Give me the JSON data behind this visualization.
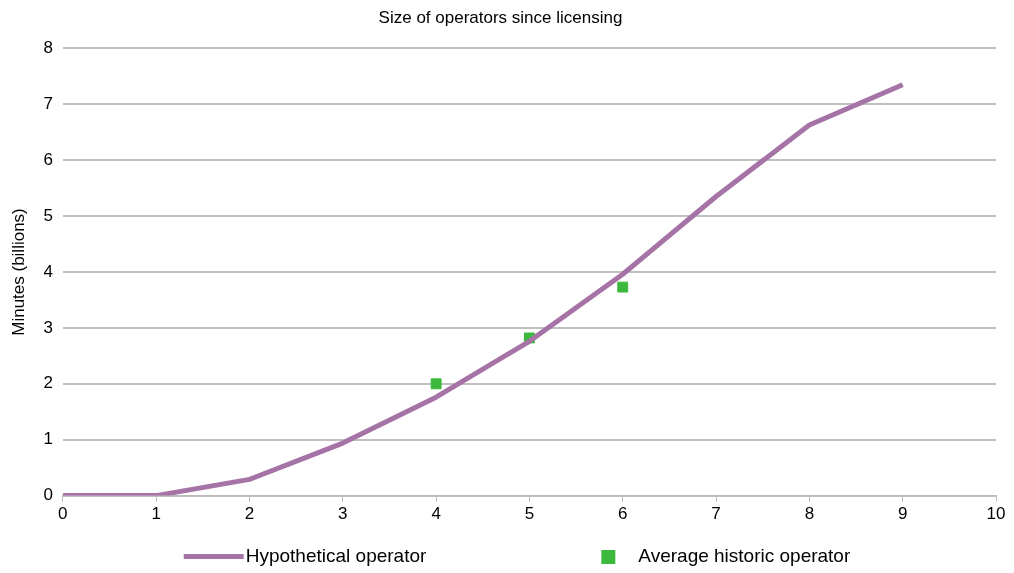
{
  "chart_data": {
    "type": "line",
    "title": "Size of operators since licensing",
    "ylabel": "Minutes (billions)",
    "xlim": [
      0,
      10
    ],
    "xticks": [
      0,
      1,
      2,
      3,
      4,
      5,
      6,
      7,
      8,
      9,
      10
    ],
    "ylim": [
      0,
      8
    ],
    "yticks": [
      0,
      1,
      2,
      3,
      4,
      5,
      6,
      7,
      8
    ],
    "grid": "y",
    "legend": "bottom",
    "series": [
      {
        "name": "Hypothetical operator",
        "color": "#a673a6",
        "marker": "none",
        "x": [
          0,
          1,
          2,
          3,
          4,
          5,
          6,
          7,
          8,
          9
        ],
        "values": [
          0,
          0,
          0.29,
          0.94,
          1.76,
          2.76,
          3.96,
          5.35,
          6.63,
          7.35
        ]
      },
      {
        "name": "Average historic operator",
        "type": "scatter",
        "color": "#3cb93c",
        "marker": "square",
        "x": [
          4,
          5,
          6
        ],
        "values": [
          2.0,
          2.82,
          3.73
        ]
      }
    ]
  }
}
